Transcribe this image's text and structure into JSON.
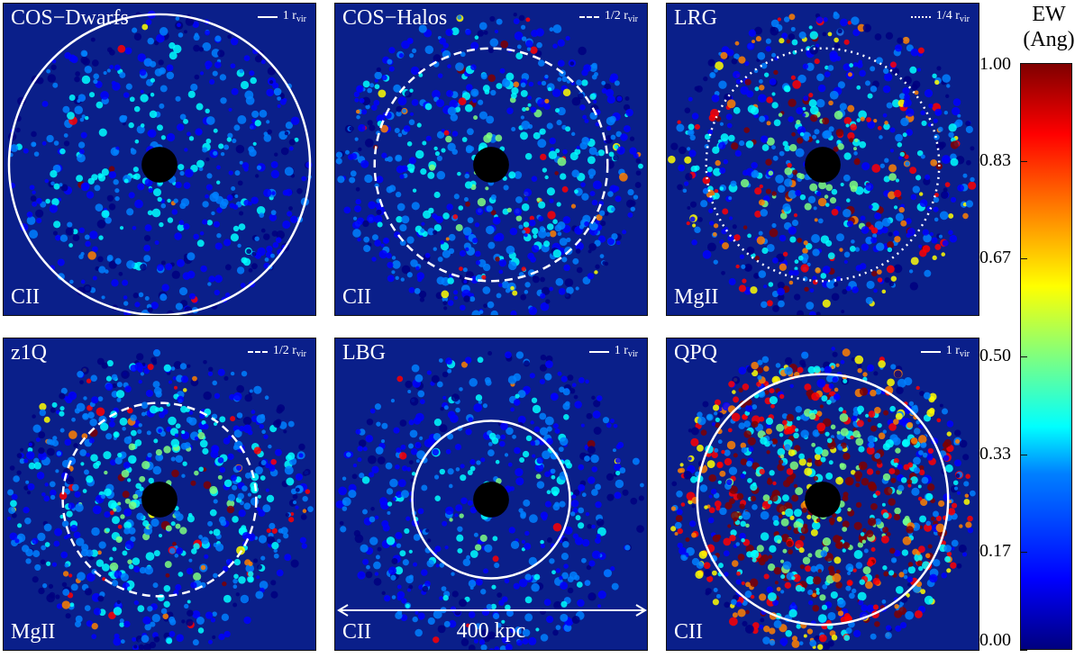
{
  "panels": [
    {
      "title": "COS−Dwarfs",
      "ion": "CII",
      "legend_prefix": "1 r",
      "legend_sub": "vir",
      "line_style": "solid",
      "density": 0.35,
      "strong": 0.02,
      "rvir_circle": 1.0
    },
    {
      "title": "COS−Halos",
      "ion": "CII",
      "legend_prefix": "1/2 r",
      "legend_sub": "vir",
      "line_style": "dashed",
      "density": 0.55,
      "strong": 0.06,
      "rvir_circle": 0.5
    },
    {
      "title": "LRG",
      "ion": "MgII",
      "legend_prefix": "1/4 r",
      "legend_sub": "vir",
      "line_style": "dotted",
      "density": 0.55,
      "strong": 0.25,
      "rvir_circle": 0.25
    },
    {
      "title": "z1Q",
      "ion": "MgII",
      "legend_prefix": "1/2 r",
      "legend_sub": "vir",
      "line_style": "dashed",
      "density": 0.6,
      "strong": 0.08,
      "rvir_circle": 0.5
    },
    {
      "title": "LBG",
      "ion": "CII",
      "legend_prefix": "1 r",
      "legend_sub": "vir",
      "line_style": "solid",
      "density": 0.4,
      "strong": 0.02,
      "rvir_circle": 1.0,
      "scale_label": "400 kpc"
    },
    {
      "title": "QPQ",
      "ion": "CII",
      "legend_prefix": "1 r",
      "legend_sub": "vir",
      "line_style": "solid",
      "density": 0.9,
      "strong": 0.45,
      "rvir_circle": 1.0
    }
  ],
  "colorbar": {
    "title_line1": "EW",
    "title_line2": "(Ang)",
    "ticks": [
      "1.00",
      "0.83",
      "0.67",
      "0.50",
      "0.33",
      "0.17",
      "0.00"
    ],
    "range": [
      0.0,
      1.0
    ]
  },
  "chart_data": {
    "type": "heatmap",
    "colorbar_label": "EW (Ang)",
    "colorbar_range": [
      0.0,
      1.0
    ],
    "colorbar_ticks": [
      0.0,
      0.17,
      0.33,
      0.5,
      0.67,
      0.83,
      1.0
    ],
    "scale_bar": "400 kpc",
    "panels": [
      "COS−Dwarfs",
      "COS−Halos",
      "LRG",
      "z1Q",
      "LBG",
      "QPQ"
    ]
  }
}
